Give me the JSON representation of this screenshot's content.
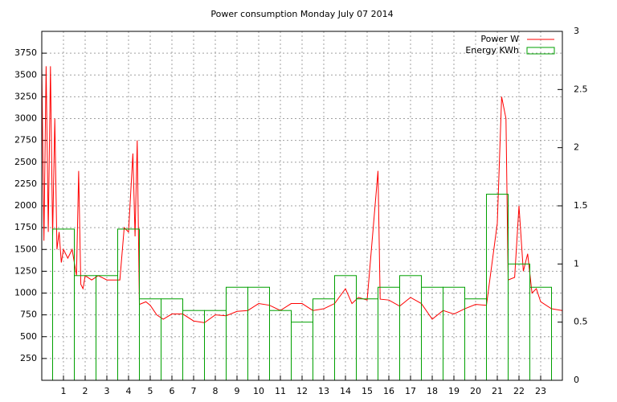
{
  "chart_data": {
    "type": "line-boxes",
    "title": "Power consumption Monday July 07 2014",
    "xlim": [
      0,
      24
    ],
    "xticks": [
      1,
      2,
      3,
      4,
      5,
      6,
      7,
      8,
      9,
      10,
      11,
      12,
      13,
      14,
      15,
      16,
      17,
      18,
      19,
      20,
      21,
      22,
      23
    ],
    "ylim": [
      0,
      4000
    ],
    "yticks": [
      250,
      500,
      750,
      1000,
      1250,
      1500,
      1750,
      2000,
      2250,
      2500,
      2750,
      3000,
      3250,
      3500,
      3750
    ],
    "y2lim": [
      0,
      3
    ],
    "y2ticks": [
      0,
      0.5,
      1,
      1.5,
      2,
      2.5,
      3
    ],
    "grid": true,
    "legend": "top-right",
    "series": [
      {
        "name": "Power W",
        "color": "#ff0000",
        "style": "line",
        "x": [
          0,
          0.1,
          0.2,
          0.3,
          0.4,
          0.5,
          0.6,
          0.7,
          0.8,
          0.9,
          1.0,
          1.2,
          1.4,
          1.6,
          1.7,
          1.8,
          1.9,
          2.0,
          2.3,
          2.6,
          3.0,
          3.3,
          3.6,
          3.8,
          4.0,
          4.2,
          4.3,
          4.4,
          4.5,
          4.8,
          5.0,
          5.3,
          5.6,
          6.0,
          6.5,
          7.0,
          7.5,
          8.0,
          8.5,
          9.0,
          9.5,
          10.0,
          10.5,
          11.0,
          11.5,
          12.0,
          12.5,
          13.0,
          13.5,
          14.0,
          14.3,
          14.6,
          15.0,
          15.5,
          15.6,
          16.0,
          16.5,
          17.0,
          17.5,
          18.0,
          18.5,
          19.0,
          19.5,
          20.0,
          20.5,
          21.0,
          21.2,
          21.4,
          21.5,
          21.8,
          22.0,
          22.2,
          22.4,
          22.6,
          22.8,
          23.0,
          23.5,
          24
        ],
        "values": [
          3600,
          1600,
          3600,
          1700,
          3600,
          1650,
          3000,
          1500,
          1700,
          1350,
          1500,
          1400,
          1500,
          1200,
          2400,
          1100,
          1050,
          1200,
          1150,
          1200,
          1150,
          1150,
          1150,
          1750,
          1700,
          2600,
          1650,
          2750,
          870,
          900,
          860,
          750,
          700,
          760,
          760,
          680,
          660,
          750,
          740,
          790,
          800,
          880,
          860,
          800,
          880,
          880,
          800,
          820,
          880,
          1050,
          880,
          950,
          920,
          2400,
          930,
          920,
          850,
          950,
          880,
          700,
          800,
          760,
          820,
          870,
          860,
          1800,
          3250,
          3000,
          1150,
          1180,
          2000,
          1250,
          1450,
          1000,
          1050,
          900,
          820,
          800
        ]
      },
      {
        "name": "Energy KWh",
        "color": "#00a000",
        "style": "boxes",
        "axis": "y2",
        "x": [
          1,
          2,
          3,
          4,
          5,
          6,
          7,
          8,
          9,
          10,
          11,
          12,
          13,
          14,
          15,
          16,
          17,
          18,
          19,
          20,
          21,
          22,
          23
        ],
        "values": [
          1.3,
          0.9,
          0.9,
          1.3,
          0.7,
          0.7,
          0.6,
          0.6,
          0.8,
          0.8,
          0.6,
          0.5,
          0.7,
          0.9,
          0.7,
          0.8,
          0.9,
          0.8,
          0.8,
          0.7,
          1.6,
          1.0,
          0.8
        ]
      }
    ]
  }
}
